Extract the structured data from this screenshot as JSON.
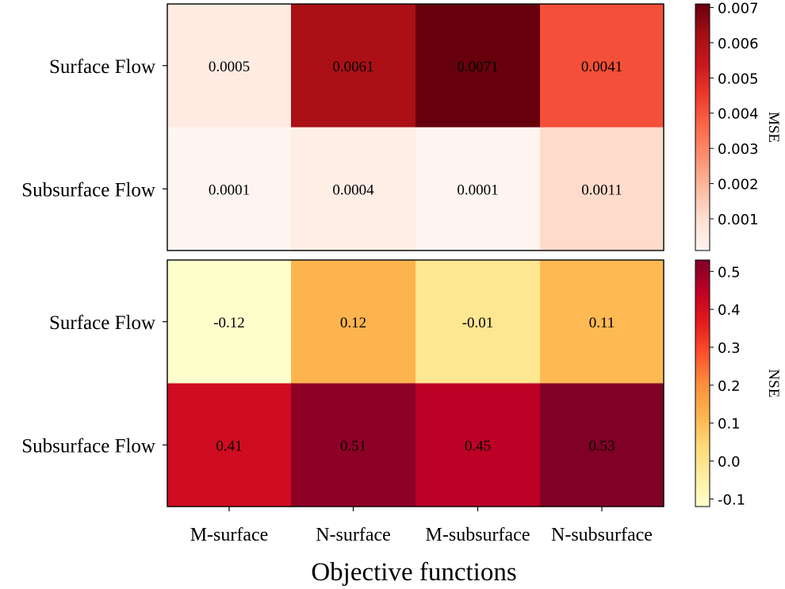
{
  "chart_data": [
    {
      "type": "heatmap",
      "rows": [
        "Surface Flow",
        "Subsurface Flow"
      ],
      "columns": [
        "M-surface",
        "N-surface",
        "M-subsurface",
        "N-subsurface"
      ],
      "values": [
        [
          0.0005,
          0.0061,
          0.0071,
          0.0041
        ],
        [
          0.0001,
          0.0004,
          0.0001,
          0.0011
        ]
      ],
      "cell_labels": [
        [
          "0.0005",
          "0.0061",
          "0.0071",
          "0.0041"
        ],
        [
          "0.0001",
          "0.0004",
          "0.0001",
          "0.0011"
        ]
      ],
      "colormap": "Reds",
      "colorbar_label": "MSE",
      "colorbar_range": [
        0.0001,
        0.0071
      ],
      "colorbar_ticks": [
        0.001,
        0.002,
        0.003,
        0.004,
        0.005,
        0.006,
        0.007
      ],
      "colorbar_tick_labels": [
        "0.001",
        "0.002",
        "0.003",
        "0.004",
        "0.005",
        "0.006",
        "0.007"
      ]
    },
    {
      "type": "heatmap",
      "rows": [
        "Surface Flow",
        "Subsurface Flow"
      ],
      "columns": [
        "M-surface",
        "N-surface",
        "M-subsurface",
        "N-subsurface"
      ],
      "values": [
        [
          -0.12,
          0.12,
          -0.01,
          0.11
        ],
        [
          0.41,
          0.51,
          0.45,
          0.53
        ]
      ],
      "cell_labels": [
        [
          "-0.12",
          "0.12",
          "-0.01",
          "0.11"
        ],
        [
          "0.41",
          "0.51",
          "0.45",
          "0.53"
        ]
      ],
      "colormap": "YlOrRd",
      "colorbar_label": "NSE",
      "colorbar_range": [
        -0.12,
        0.53
      ],
      "colorbar_ticks": [
        -0.1,
        0.0,
        0.1,
        0.2,
        0.3,
        0.4,
        0.5
      ],
      "colorbar_tick_labels": [
        "-0.1",
        "0.0",
        "0.1",
        "0.2",
        "0.3",
        "0.4",
        "0.5"
      ]
    }
  ],
  "xlabel": "Objective functions",
  "x_tick_labels": [
    "M-surface",
    "N-surface",
    "M-subsurface",
    "N-subsurface"
  ]
}
